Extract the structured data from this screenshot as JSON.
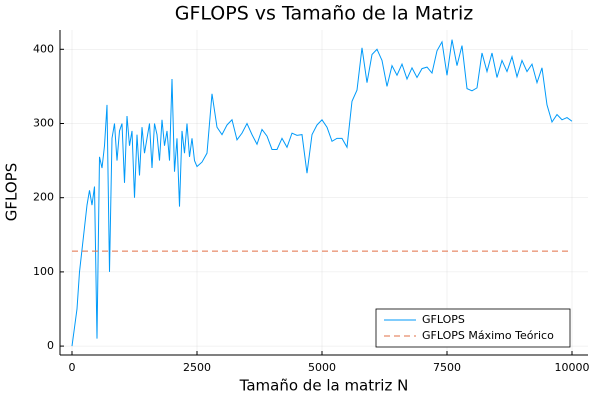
{
  "chart_data": {
    "type": "line",
    "title": "GFLOPS vs Tamaño de la Matriz",
    "x_label": "Tamaño de la matriz N",
    "y_label": "GFLOPS",
    "xlim": [
      -240,
      10320
    ],
    "ylim": [
      -12,
      426
    ],
    "xticks": [
      0,
      2500,
      5000,
      7500,
      10000
    ],
    "yticks": [
      0,
      100,
      200,
      300,
      400
    ],
    "grid": true,
    "legend": "bottom-right",
    "series": [
      {
        "name": "GFLOPS",
        "color": "#009af9",
        "dash": false,
        "x": [
          0,
          50,
          100,
          150,
          200,
          250,
          300,
          350,
          400,
          450,
          500,
          550,
          600,
          650,
          700,
          750,
          800,
          850,
          900,
          950,
          1000,
          1050,
          1100,
          1150,
          1200,
          1250,
          1300,
          1350,
          1400,
          1450,
          1500,
          1550,
          1600,
          1650,
          1700,
          1750,
          1800,
          1850,
          1900,
          1950,
          2000,
          2050,
          2100,
          2150,
          2200,
          2250,
          2300,
          2350,
          2400,
          2450,
          2500,
          2600,
          2700,
          2800,
          2900,
          3000,
          3100,
          3200,
          3300,
          3400,
          3500,
          3600,
          3700,
          3800,
          3900,
          4000,
          4100,
          4200,
          4300,
          4400,
          4500,
          4600,
          4700,
          4800,
          4900,
          5000,
          5100,
          5200,
          5300,
          5400,
          5500,
          5600,
          5700,
          5800,
          5900,
          6000,
          6100,
          6200,
          6300,
          6400,
          6500,
          6600,
          6700,
          6800,
          6900,
          7000,
          7100,
          7200,
          7300,
          7400,
          7500,
          7600,
          7700,
          7800,
          7900,
          8000,
          8100,
          8200,
          8300,
          8400,
          8500,
          8600,
          8700,
          8800,
          8900,
          9000,
          9100,
          9200,
          9300,
          9400,
          9500,
          9600,
          9700,
          9800,
          9900,
          10000
        ],
        "values": [
          0,
          25,
          50,
          100,
          130,
          160,
          190,
          210,
          190,
          215,
          10,
          255,
          240,
          270,
          325,
          100,
          280,
          300,
          250,
          290,
          300,
          220,
          310,
          270,
          290,
          200,
          285,
          230,
          295,
          260,
          280,
          300,
          240,
          300,
          285,
          250,
          305,
          270,
          290,
          250,
          360,
          235,
          280,
          188,
          290,
          260,
          300,
          255,
          280,
          250,
          242,
          248,
          260,
          340,
          295,
          285,
          298,
          305,
          278,
          287,
          300,
          285,
          272,
          292,
          283,
          265,
          265,
          280,
          268,
          287,
          284,
          285,
          233,
          285,
          298,
          305,
          295,
          276,
          280,
          280,
          268,
          330,
          345,
          402,
          355,
          393,
          400,
          385,
          350,
          378,
          365,
          380,
          360,
          375,
          362,
          374,
          376,
          368,
          398,
          410,
          365,
          413,
          378,
          405,
          347,
          344,
          348,
          395,
          370,
          395,
          362,
          385,
          370,
          390,
          363,
          385,
          370,
          380,
          355,
          375,
          325,
          302,
          312,
          305,
          308,
          303
        ]
      },
      {
        "name": "GFLOPS Máximo Teórico",
        "color": "#e26f46",
        "dash": true,
        "x": [
          0,
          10000
        ],
        "values": [
          128,
          128
        ]
      }
    ]
  }
}
